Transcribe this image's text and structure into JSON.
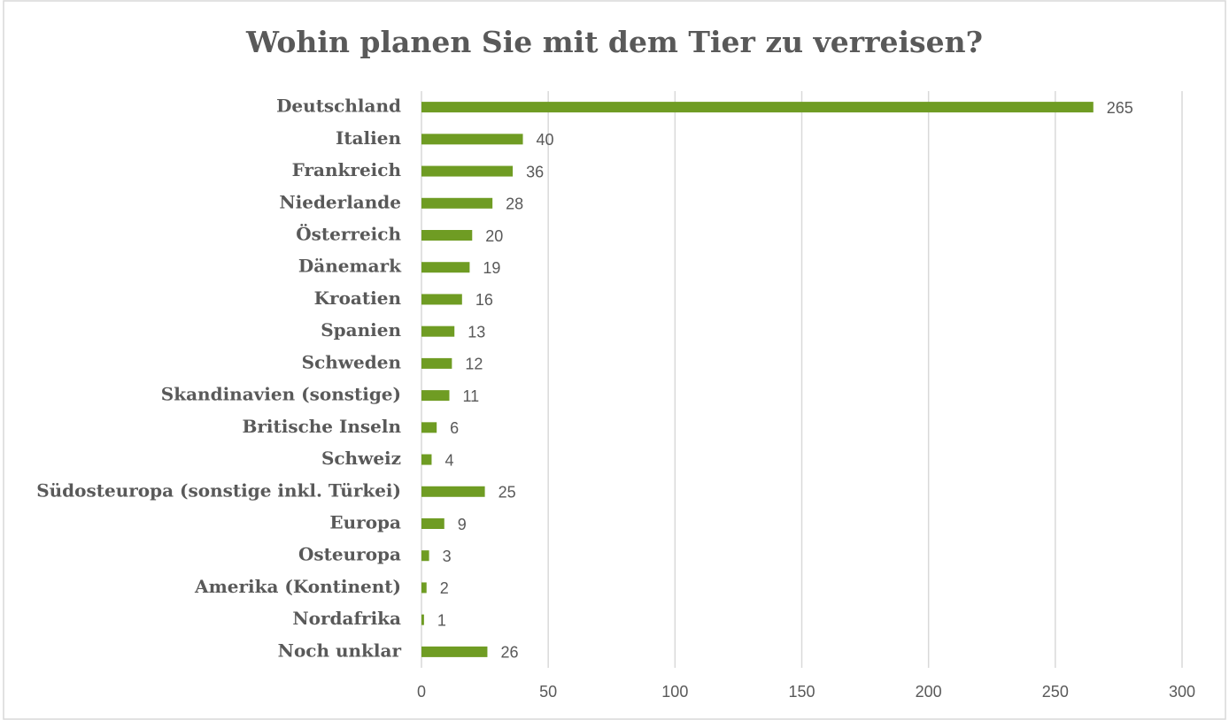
{
  "chart_data": {
    "type": "bar",
    "orientation": "horizontal",
    "title": "Wohin planen Sie mit dem Tier zu verreisen?",
    "categories": [
      "Deutschland",
      "Italien",
      "Frankreich",
      "Niederlande",
      "Österreich",
      "Dänemark",
      "Kroatien",
      "Spanien",
      "Schweden",
      "Skandinavien (sonstige)",
      "Britische Inseln",
      "Schweiz",
      "Südosteuropa (sonstige inkl. Türkei)",
      "Europa",
      "Osteuropa",
      "Amerika (Kontinent)",
      "Nordafrika",
      "Noch unklar"
    ],
    "values": [
      265,
      40,
      36,
      28,
      20,
      19,
      16,
      13,
      12,
      11,
      6,
      4,
      25,
      9,
      3,
      2,
      1,
      26
    ],
    "color": "#6f9c23",
    "xlim": [
      0,
      300
    ],
    "xticks": [
      0,
      50,
      100,
      150,
      200,
      250,
      300
    ],
    "grid": true
  }
}
